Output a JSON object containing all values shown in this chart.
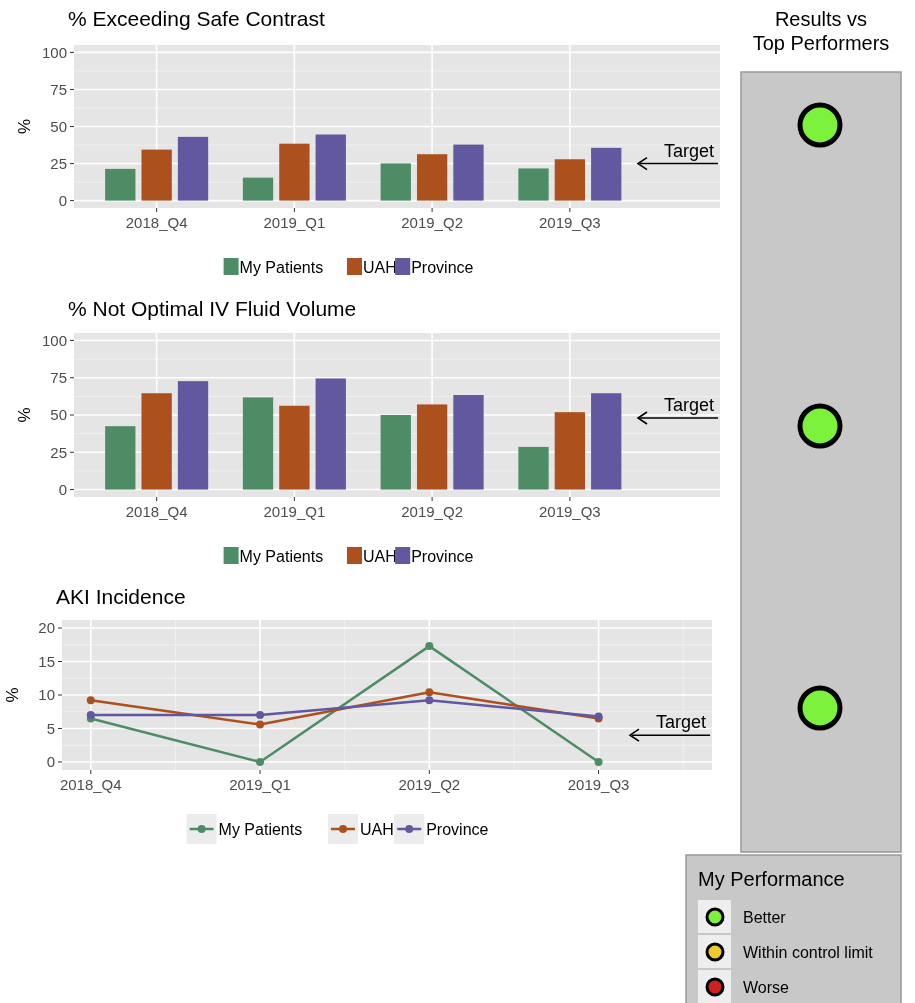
{
  "chart_data": [
    {
      "type": "bar",
      "title": "% Exceeding Safe Contrast",
      "ylabel": "%",
      "categories": [
        "2018_Q4",
        "2019_Q1",
        "2019_Q2",
        "2019_Q3"
      ],
      "series": [
        {
          "name": "My Patients",
          "color": "#4e8c66",
          "values": [
            21.4,
            15.5,
            25.1,
            21.7
          ]
        },
        {
          "name": "UAH",
          "color": "#ac501d",
          "values": [
            34.4,
            38.4,
            31.3,
            27.9
          ]
        },
        {
          "name": "Province",
          "color": "#6158a0",
          "values": [
            43.0,
            44.6,
            37.8,
            35.6
          ]
        }
      ],
      "ylim": [
        -5,
        105
      ],
      "yticks": [
        0,
        25,
        50,
        75,
        100
      ],
      "grid": true,
      "legend": "bottom",
      "ref_lines": [
        {
          "axis": "y",
          "value": 25,
          "label": "Target"
        }
      ]
    },
    {
      "type": "bar",
      "title": "% Not Optimal IV Fluid Volume",
      "ylabel": "%",
      "categories": [
        "2018_Q4",
        "2019_Q1",
        "2019_Q2",
        "2019_Q3"
      ],
      "series": [
        {
          "name": "My Patients",
          "color": "#4e8c66",
          "values": [
            42.5,
            61.8,
            50.0,
            28.6
          ]
        },
        {
          "name": "UAH",
          "color": "#ac501d",
          "values": [
            64.6,
            56.2,
            57.1,
            51.9
          ]
        },
        {
          "name": "Province",
          "color": "#6158a0",
          "values": [
            72.7,
            74.5,
            63.4,
            64.6
          ]
        }
      ],
      "ylim": [
        -5,
        105
      ],
      "yticks": [
        0,
        25,
        50,
        75,
        100
      ],
      "grid": true,
      "legend": "bottom",
      "ref_lines": [
        {
          "axis": "y",
          "value": 48,
          "label": "Target"
        }
      ]
    },
    {
      "type": "line",
      "title": "AKI Incidence",
      "ylabel": "%",
      "categories": [
        "2018_Q4",
        "2019_Q1",
        "2019_Q2",
        "2019_Q3"
      ],
      "series": [
        {
          "name": "My Patients",
          "color": "#4e8c66",
          "values": [
            6.5,
            0,
            17.3,
            0
          ]
        },
        {
          "name": "UAH",
          "color": "#ac501d",
          "values": [
            9.2,
            5.6,
            10.4,
            6.5
          ]
        },
        {
          "name": "Province",
          "color": "#6158a0",
          "values": [
            7.0,
            7.0,
            9.2,
            6.8
          ]
        }
      ],
      "ylim": [
        -1.2,
        21.2
      ],
      "yticks": [
        0,
        5,
        10,
        15,
        20
      ],
      "grid": true,
      "legend": "bottom",
      "marker": "circle",
      "line_style": "solid",
      "ref_lines": [
        {
          "axis": "y",
          "value": 4,
          "label": "Target"
        }
      ]
    },
    {
      "type": "other",
      "title": "Results vs Top Performers",
      "legend_title": "My Performance",
      "categories": [
        "Better",
        "Within control limit",
        "Worse"
      ],
      "colors": [
        "#7cf23c",
        "#edcb2f",
        "#d0211d"
      ]
    }
  ]
}
